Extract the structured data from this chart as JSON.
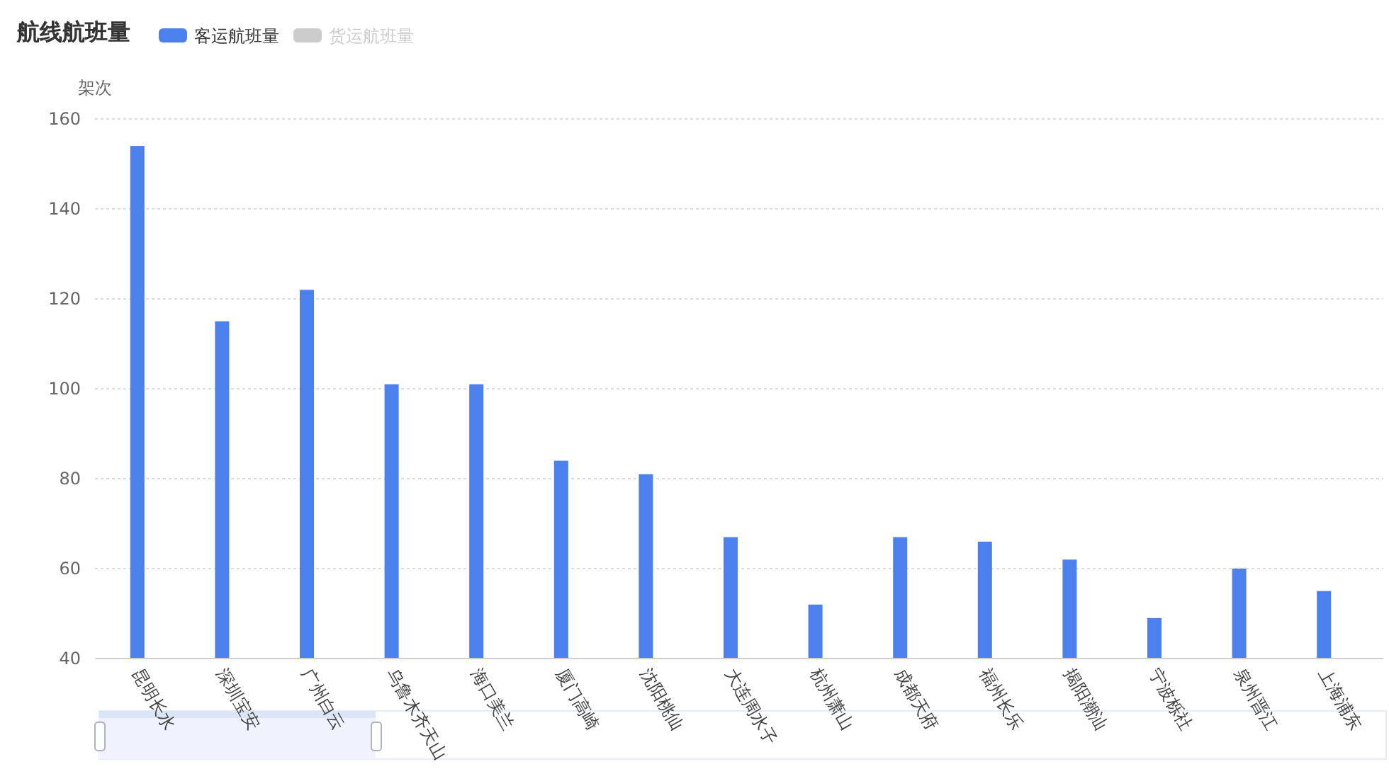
{
  "chart_data": {
    "type": "bar",
    "title": "航线航班量",
    "ylabel": "架次",
    "categories": [
      "昆明长水",
      "深圳宝安",
      "广州白云",
      "乌鲁木齐天山",
      "海口美兰",
      "厦门高崎",
      "沈阳桃仙",
      "大连周水子",
      "杭州萧山",
      "成都天府",
      "福州长乐",
      "揭阳潮汕",
      "宁波栎社",
      "泉州晋江",
      "上海浦东"
    ],
    "series": [
      {
        "name": "客运航班量",
        "color": "#4b80ed",
        "values": [
          154,
          115,
          122,
          101,
          101,
          84,
          81,
          67,
          52,
          67,
          66,
          62,
          49,
          60,
          55
        ]
      },
      {
        "name": "货运航班量",
        "color": "#cccccc",
        "values": [
          null,
          null,
          null,
          null,
          null,
          null,
          null,
          null,
          null,
          null,
          null,
          null,
          null,
          null,
          null
        ]
      }
    ],
    "ylim": [
      40,
      160
    ],
    "yticks": [
      40,
      60,
      80,
      100,
      120,
      140,
      160
    ],
    "grid": "y",
    "legend": "top left"
  }
}
